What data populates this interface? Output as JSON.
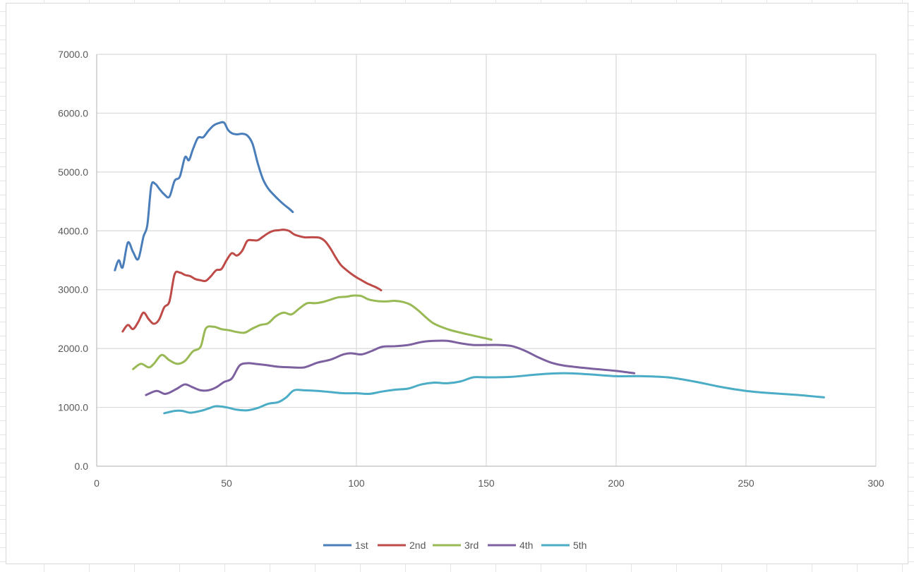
{
  "chart_data": {
    "type": "line",
    "title": "",
    "xlabel": "",
    "ylabel": "",
    "xlim": [
      0,
      300
    ],
    "ylim": [
      0,
      7000
    ],
    "xticks": [
      0,
      50,
      100,
      150,
      200,
      250,
      300
    ],
    "yticks": [
      0,
      1000,
      2000,
      3000,
      4000,
      5000,
      6000,
      7000
    ],
    "xtick_labels": [
      "0",
      "50",
      "100",
      "150",
      "200",
      "250",
      "300"
    ],
    "ytick_labels": [
      "0.0",
      "1000.0",
      "2000.0",
      "3000.0",
      "4000.0",
      "5000.0",
      "6000.0",
      "7000.0"
    ],
    "grid": true,
    "legend_position": "bottom",
    "series": [
      {
        "name": "1st",
        "color": "#4a7ebb",
        "x": [
          7,
          8.5,
          10,
          12,
          14,
          16,
          18,
          19.5,
          21,
          22.5,
          24,
          26,
          28,
          30,
          32,
          34,
          35.5,
          37,
          39,
          41,
          43,
          45,
          47,
          49,
          50.5,
          52,
          54,
          56,
          58,
          60,
          62,
          64,
          66,
          68,
          70,
          72,
          74,
          75.5
        ],
        "y": [
          3330,
          3500,
          3380,
          3800,
          3640,
          3520,
          3900,
          4100,
          4760,
          4800,
          4720,
          4620,
          4580,
          4850,
          4920,
          5250,
          5200,
          5380,
          5580,
          5590,
          5700,
          5790,
          5830,
          5840,
          5720,
          5660,
          5640,
          5650,
          5620,
          5480,
          5150,
          4880,
          4720,
          4620,
          4530,
          4450,
          4380,
          4320
        ]
      },
      {
        "name": "2nd",
        "color": "#be4b48",
        "x": [
          10,
          12,
          14,
          16,
          18,
          20,
          22,
          24,
          26,
          28,
          30,
          32,
          34,
          36,
          38,
          40,
          42,
          44,
          46,
          48,
          50,
          52,
          54,
          56,
          58,
          60,
          62,
          64,
          66,
          68,
          70,
          72,
          74,
          76,
          78,
          80,
          82,
          84,
          86,
          88,
          90,
          92,
          94,
          96,
          98,
          100,
          102,
          104,
          106,
          108,
          109.5
        ],
        "y": [
          2290,
          2400,
          2330,
          2450,
          2610,
          2500,
          2420,
          2490,
          2700,
          2800,
          3260,
          3290,
          3250,
          3230,
          3180,
          3160,
          3150,
          3230,
          3330,
          3350,
          3500,
          3620,
          3580,
          3660,
          3830,
          3840,
          3840,
          3900,
          3960,
          4000,
          4010,
          4020,
          4000,
          3940,
          3910,
          3890,
          3890,
          3890,
          3880,
          3820,
          3700,
          3550,
          3420,
          3340,
          3270,
          3210,
          3160,
          3110,
          3070,
          3030,
          2990
        ]
      },
      {
        "name": "3rd",
        "color": "#98b954",
        "x": [
          14,
          17,
          20,
          22,
          25,
          28,
          31,
          34,
          37,
          40,
          42,
          45,
          48,
          51,
          54,
          57,
          60,
          63,
          66,
          69,
          72,
          75,
          78,
          81,
          84,
          87,
          90,
          93,
          96,
          99,
          102,
          105,
          110,
          115,
          118,
          121,
          124,
          127,
          130,
          135,
          140,
          145,
          150,
          152
        ],
        "y": [
          1650,
          1740,
          1680,
          1740,
          1890,
          1800,
          1740,
          1790,
          1950,
          2030,
          2340,
          2370,
          2330,
          2310,
          2280,
          2270,
          2340,
          2400,
          2430,
          2550,
          2610,
          2580,
          2680,
          2770,
          2770,
          2790,
          2830,
          2870,
          2880,
          2900,
          2890,
          2830,
          2800,
          2810,
          2790,
          2740,
          2640,
          2520,
          2420,
          2330,
          2270,
          2220,
          2170,
          2150
        ]
      },
      {
        "name": "4th",
        "color": "#7d60a0",
        "x": [
          19,
          23,
          26,
          28,
          31,
          34,
          37,
          40,
          43,
          46,
          49,
          52,
          55,
          58,
          61,
          65,
          70,
          75,
          80,
          85,
          90,
          95,
          98,
          102,
          106,
          110,
          115,
          120,
          125,
          130,
          135,
          140,
          145,
          150,
          155,
          160,
          165,
          170,
          175,
          180,
          190,
          200,
          207
        ],
        "y": [
          1210,
          1280,
          1230,
          1250,
          1320,
          1390,
          1340,
          1290,
          1290,
          1340,
          1430,
          1490,
          1710,
          1750,
          1740,
          1720,
          1690,
          1680,
          1680,
          1760,
          1810,
          1900,
          1920,
          1900,
          1960,
          2030,
          2040,
          2060,
          2110,
          2130,
          2130,
          2090,
          2060,
          2060,
          2060,
          2040,
          1960,
          1850,
          1760,
          1710,
          1660,
          1620,
          1580
        ]
      },
      {
        "name": "5th",
        "color": "#4bacc6",
        "x": [
          26,
          30,
          33,
          36,
          40,
          43,
          46,
          50,
          54,
          58,
          62,
          66,
          70,
          73,
          76,
          80,
          85,
          90,
          95,
          100,
          105,
          110,
          115,
          120,
          125,
          130,
          135,
          140,
          145,
          150,
          160,
          170,
          180,
          190,
          200,
          210,
          220,
          230,
          240,
          250,
          260,
          270,
          280
        ],
        "y": [
          900,
          940,
          940,
          910,
          940,
          980,
          1020,
          1000,
          960,
          950,
          990,
          1060,
          1090,
          1170,
          1290,
          1290,
          1280,
          1260,
          1240,
          1240,
          1230,
          1270,
          1300,
          1320,
          1390,
          1420,
          1410,
          1440,
          1510,
          1510,
          1520,
          1560,
          1580,
          1560,
          1530,
          1530,
          1510,
          1440,
          1350,
          1280,
          1240,
          1210,
          1170
        ]
      }
    ]
  }
}
